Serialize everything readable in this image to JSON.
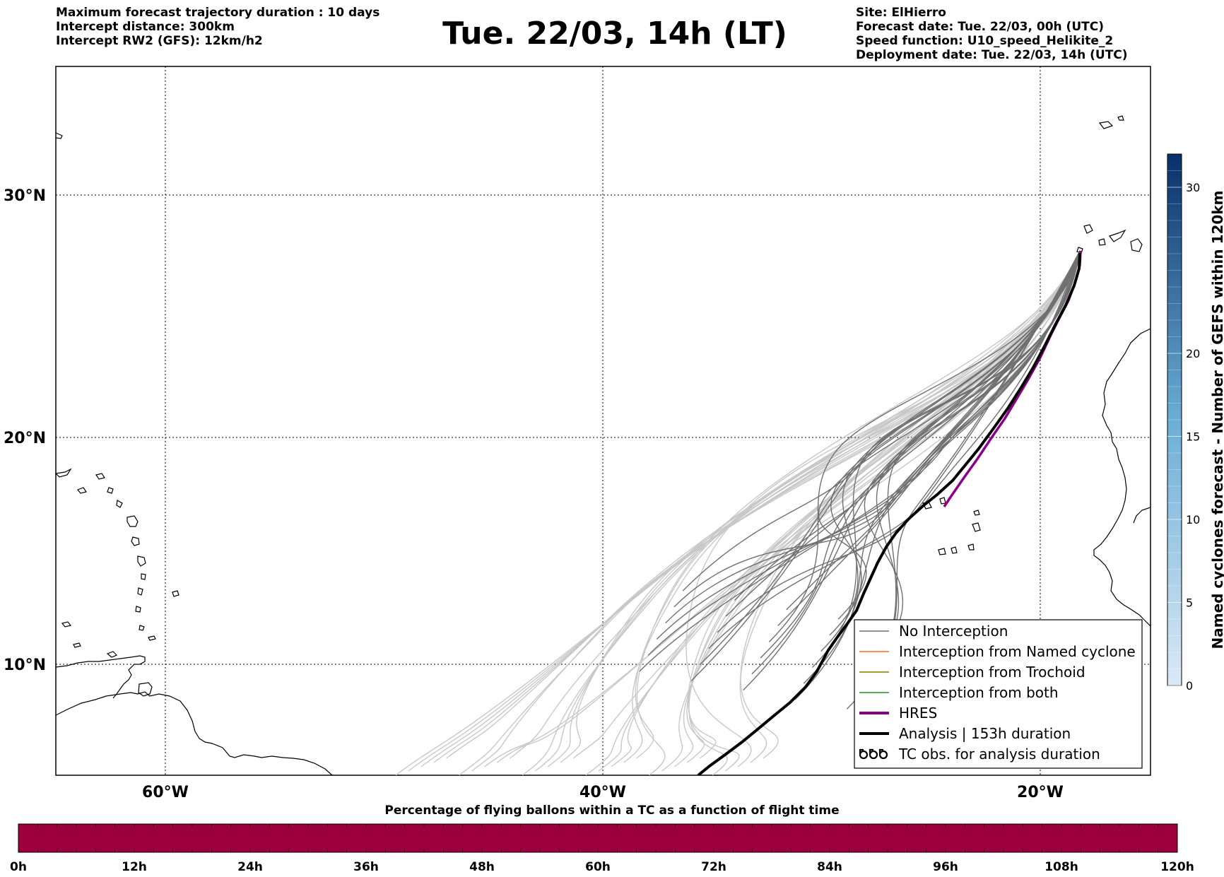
{
  "header": {
    "left_lines": [
      "Maximum forecast trajectory duration : 10 days",
      "Intercept distance: 300km",
      "Intercept RW2 (GFS):  12km/h2"
    ],
    "title": "Tue. 22/03, 14h (LT)",
    "right_lines": [
      "Site: ElHierro",
      "Forecast date: Tue. 22/03, 00h (UTC)",
      "Speed function: U10_speed_Helikite_2",
      "Deployment date: Tue. 22/03, 14h (UTC)"
    ]
  },
  "map": {
    "lon_range": [
      -65,
      15
    ],
    "lat_range": [
      5,
      35.5
    ],
    "latitude_labels": [
      {
        "lat": 30,
        "text": "30°N"
      },
      {
        "lat": 20,
        "text": "20°N"
      },
      {
        "lat": 10,
        "text": "10°N"
      }
    ],
    "longitude_labels": [
      {
        "lon": -60,
        "text": "60°W"
      },
      {
        "lon": -40,
        "text": "40°W"
      },
      {
        "lon": -20,
        "text": "20°W"
      }
    ],
    "colors": {
      "no_interception": "#707070",
      "no_interception_faded": "#c8c8c8",
      "named_cyclone": "#ff6a1a",
      "trochoid": "#8a7a00",
      "both": "#1a9a1a",
      "hres": "#8b008b",
      "analysis": "#000000"
    }
  },
  "legend": {
    "items": [
      {
        "label": "No Interception",
        "color": "#707070",
        "style": "thin"
      },
      {
        "label": "Interception from Named cyclone",
        "color": "#ff6a1a",
        "style": "thin"
      },
      {
        "label": "Interception from Trochoid",
        "color": "#8a7a00",
        "style": "thin"
      },
      {
        "label": "Interception from both",
        "color": "#1a9a1a",
        "style": "thin"
      },
      {
        "label": "HRES",
        "color": "#8b008b",
        "style": "thick"
      },
      {
        "label": "Analysis | 153h duration",
        "color": "#000000",
        "style": "thick"
      },
      {
        "label": "TC obs. for analysis duration",
        "color": "#000000",
        "style": "symbol"
      }
    ]
  },
  "right_colorbar": {
    "title": "Named cyclones forecast - Number of GEFS within 120km",
    "min": 0,
    "max": 32,
    "ticks": [
      0,
      5,
      10,
      15,
      20,
      30
    ],
    "color_low": "#dbe9f6",
    "color_high": "#08306b"
  },
  "bottom_colorbar": {
    "title": "Percentage of flying ballons within a TC as a function of flight time",
    "tick_labels": [
      "0h",
      "12h",
      "24h",
      "36h",
      "48h",
      "60h",
      "72h",
      "84h",
      "96h",
      "108h",
      "120h"
    ],
    "fill_color": "#9b003c"
  }
}
